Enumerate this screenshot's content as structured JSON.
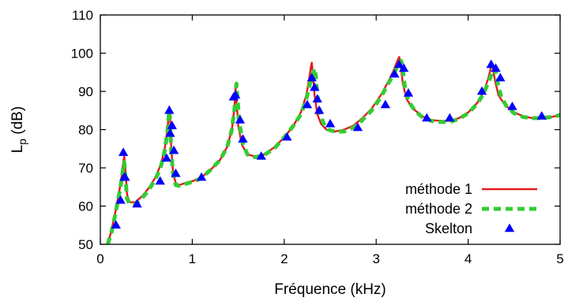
{
  "chart_data": {
    "type": "line",
    "title": "",
    "xlabel": "Fréquence (kHz)",
    "ylabel_main": "L",
    "ylabel_sub": "p",
    "ylabel_unit": " (dB)",
    "xlim": [
      0,
      5
    ],
    "ylim": [
      50,
      110
    ],
    "xticks": [
      0,
      1,
      2,
      3,
      4,
      5
    ],
    "yticks": [
      50,
      60,
      70,
      80,
      90,
      100,
      110
    ],
    "grid": false,
    "legend_position": "bottom-right",
    "series": [
      {
        "name": "méthode 1",
        "style": "solid-line",
        "color": "#e41a1c",
        "x": [
          0.08,
          0.12,
          0.16,
          0.2,
          0.23,
          0.25,
          0.26,
          0.27,
          0.29,
          0.32,
          0.38,
          0.45,
          0.52,
          0.6,
          0.66,
          0.7,
          0.73,
          0.75,
          0.76,
          0.77,
          0.79,
          0.82,
          0.86,
          0.92,
          1.0,
          1.1,
          1.2,
          1.3,
          1.38,
          1.43,
          1.46,
          1.47,
          1.48,
          1.5,
          1.54,
          1.6,
          1.68,
          1.78,
          1.9,
          2.0,
          2.1,
          2.18,
          2.24,
          2.27,
          2.29,
          2.3,
          2.31,
          2.33,
          2.36,
          2.4,
          2.46,
          2.55,
          2.65,
          2.75,
          2.85,
          2.95,
          3.05,
          3.13,
          3.19,
          3.23,
          3.25,
          3.26,
          3.27,
          3.29,
          3.33,
          3.4,
          3.5,
          3.6,
          3.7,
          3.8,
          3.9,
          4.0,
          4.1,
          4.17,
          4.22,
          4.25,
          4.26,
          4.27,
          4.29,
          4.33,
          4.4,
          4.5,
          4.6,
          4.7,
          4.8,
          4.9,
          5.0
        ],
        "y": [
          50,
          53.5,
          58,
          63,
          67.5,
          71.5,
          73,
          70.5,
          63,
          61,
          61,
          62.5,
          64.5,
          67.5,
          71,
          75,
          80,
          86,
          83,
          76,
          69,
          66,
          65.5,
          66,
          66.5,
          67.5,
          69.5,
          72,
          75.5,
          80,
          86,
          91,
          88,
          81,
          76,
          73.5,
          73,
          73.5,
          75.5,
          78,
          81,
          84.5,
          89,
          93,
          96.5,
          97.5,
          95,
          89,
          84,
          81.5,
          80,
          79.5,
          80,
          81,
          83,
          85.5,
          89,
          92.5,
          95.5,
          98,
          99,
          98,
          96,
          92,
          88,
          85.5,
          83.5,
          82.5,
          82.3,
          82.3,
          83,
          84.5,
          87,
          90,
          93.5,
          96.5,
          97,
          96,
          93,
          89,
          86.5,
          84.5,
          83.5,
          83,
          83,
          83.3,
          83.8
        ]
      },
      {
        "name": "méthode 2",
        "style": "dashed-line",
        "color": "#33cc33",
        "x": [
          0.08,
          0.12,
          0.16,
          0.2,
          0.23,
          0.25,
          0.26,
          0.27,
          0.29,
          0.32,
          0.38,
          0.45,
          0.52,
          0.6,
          0.66,
          0.7,
          0.73,
          0.75,
          0.76,
          0.77,
          0.79,
          0.82,
          0.86,
          0.92,
          1.0,
          1.1,
          1.2,
          1.3,
          1.38,
          1.43,
          1.46,
          1.48,
          1.49,
          1.51,
          1.55,
          1.6,
          1.68,
          1.78,
          1.9,
          2.0,
          2.1,
          2.18,
          2.24,
          2.28,
          2.31,
          2.33,
          2.34,
          2.36,
          2.39,
          2.43,
          2.48,
          2.55,
          2.65,
          2.75,
          2.85,
          2.95,
          3.05,
          3.13,
          3.19,
          3.24,
          3.27,
          3.28,
          3.29,
          3.31,
          3.35,
          3.42,
          3.5,
          3.6,
          3.7,
          3.8,
          3.9,
          4.0,
          4.1,
          4.17,
          4.23,
          4.27,
          4.29,
          4.3,
          4.32,
          4.36,
          4.42,
          4.5,
          4.6,
          4.7,
          4.8,
          4.9,
          5.0
        ],
        "y": [
          50,
          53,
          57.5,
          62.5,
          66.5,
          70,
          71.5,
          68.5,
          62,
          60.5,
          60.5,
          62,
          64,
          67,
          70.5,
          74.5,
          79.5,
          85,
          82,
          75,
          68.5,
          65.5,
          65.3,
          65.8,
          66.3,
          67.3,
          69.5,
          72,
          75.5,
          80,
          85.5,
          92,
          89,
          82,
          76.5,
          73.5,
          72.8,
          73.3,
          75.3,
          78,
          81,
          84,
          88,
          92,
          94.5,
          96,
          94.5,
          89,
          84,
          81.5,
          80,
          79.5,
          79.5,
          80.5,
          82.5,
          85,
          88.5,
          92,
          94.5,
          97,
          98,
          97.3,
          95.5,
          91.5,
          87.5,
          85,
          83.3,
          82.3,
          82,
          82,
          82.8,
          84.3,
          86.8,
          89.5,
          93,
          95.5,
          96,
          95,
          92.3,
          88.5,
          86,
          84.3,
          83.3,
          83,
          83,
          83.3,
          83.8
        ]
      },
      {
        "name": "Skelton",
        "style": "triangle-markers",
        "color": "#0000ff",
        "x": [
          0.17,
          0.22,
          0.25,
          0.26,
          0.27,
          0.4,
          0.65,
          0.72,
          0.75,
          0.76,
          0.78,
          0.8,
          0.82,
          1.1,
          1.45,
          1.47,
          1.52,
          1.55,
          1.75,
          2.03,
          2.25,
          2.3,
          2.33,
          2.36,
          2.38,
          2.5,
          2.8,
          3.1,
          3.2,
          3.25,
          3.3,
          3.35,
          3.55,
          3.8,
          4.15,
          4.25,
          4.3,
          4.35,
          4.48,
          4.8
        ],
        "y": [
          55,
          61.5,
          74,
          67.5,
          67.5,
          60.5,
          66.5,
          72.5,
          85,
          79,
          81,
          74.5,
          68.5,
          67.5,
          88.5,
          89,
          82.5,
          77.5,
          73,
          78,
          86.5,
          93.5,
          91,
          88,
          85,
          81.5,
          80.5,
          86.5,
          94.5,
          97,
          96,
          89.5,
          83,
          83,
          90,
          97,
          96,
          93.5,
          86,
          83.5
        ]
      }
    ]
  }
}
